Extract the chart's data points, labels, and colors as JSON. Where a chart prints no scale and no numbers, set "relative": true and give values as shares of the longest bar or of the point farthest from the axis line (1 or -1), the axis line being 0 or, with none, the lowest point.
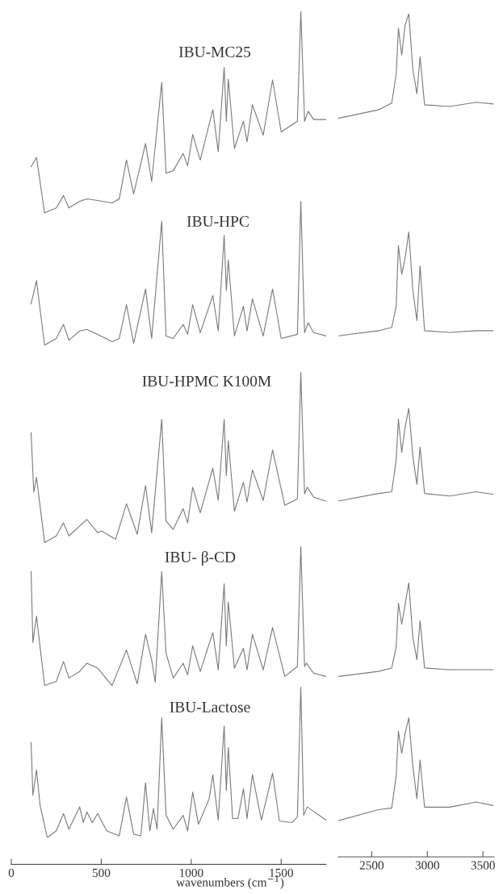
{
  "chart_data": [
    {
      "type": "line",
      "relative": true,
      "xlabel": "wavenumbers (cm$^{−1}$)",
      "xlim": [
        0,
        1750
      ],
      "xticks": [
        0,
        500,
        1000,
        1500
      ],
      "series": [
        {
          "name": "IBU-MC25",
          "color": "#7a7a7a",
          "x": [
            110,
            140,
            185,
            250,
            290,
            320,
            380,
            420,
            480,
            560,
            600,
            640,
            680,
            746,
            780,
            836,
            860,
            900,
            955,
            980,
            1008,
            1050,
            1120,
            1150,
            1183,
            1195,
            1206,
            1240,
            1290,
            1310,
            1340,
            1400,
            1452,
            1500,
            1590,
            1609,
            1630,
            1650,
            1680,
            1750
          ],
          "values": [
            0.812,
            0.823,
            0.756,
            0.762,
            0.777,
            0.762,
            0.77,
            0.773,
            0.771,
            0.768,
            0.773,
            0.82,
            0.779,
            0.84,
            0.794,
            0.914,
            0.804,
            0.807,
            0.828,
            0.813,
            0.851,
            0.82,
            0.881,
            0.83,
            0.932,
            0.867,
            0.918,
            0.834,
            0.867,
            0.842,
            0.887,
            0.85,
            0.917,
            0.854,
            0.867,
            1.0,
            0.867,
            0.879,
            0.869,
            0.869
          ]
        },
        {
          "name": "IBU-HPC",
          "color": "#7a7a7a",
          "x": [
            110,
            140,
            185,
            250,
            290,
            320,
            380,
            420,
            480,
            560,
            600,
            640,
            680,
            746,
            780,
            836,
            860,
            900,
            955,
            980,
            1008,
            1050,
            1120,
            1150,
            1183,
            1195,
            1206,
            1240,
            1290,
            1310,
            1340,
            1400,
            1452,
            1500,
            1590,
            1609,
            1630,
            1650,
            1680,
            1750
          ],
          "values": [
            0.646,
            0.674,
            0.596,
            0.604,
            0.621,
            0.602,
            0.613,
            0.615,
            0.609,
            0.6,
            0.604,
            0.645,
            0.598,
            0.664,
            0.604,
            0.746,
            0.607,
            0.604,
            0.621,
            0.609,
            0.645,
            0.611,
            0.656,
            0.613,
            0.729,
            0.662,
            0.699,
            0.607,
            0.643,
            0.613,
            0.652,
            0.607,
            0.664,
            0.604,
            0.609,
            0.77,
            0.611,
            0.623,
            0.611,
            0.607
          ]
        },
        {
          "name": "IBU-HPMC K100M",
          "color": "#7a7a7a",
          "x": [
            110,
            125,
            140,
            185,
            250,
            290,
            320,
            380,
            420,
            480,
            500,
            580,
            640,
            700,
            746,
            780,
            836,
            860,
            900,
            955,
            980,
            1008,
            1050,
            1120,
            1150,
            1183,
            1195,
            1206,
            1240,
            1290,
            1310,
            1340,
            1400,
            1452,
            1520,
            1590,
            1609,
            1630,
            1645,
            1680,
            1750
          ],
          "values": [
            0.49,
            0.418,
            0.436,
            0.357,
            0.365,
            0.381,
            0.365,
            0.377,
            0.385,
            0.369,
            0.371,
            0.361,
            0.404,
            0.367,
            0.426,
            0.369,
            0.506,
            0.383,
            0.373,
            0.398,
            0.381,
            0.424,
            0.393,
            0.447,
            0.408,
            0.506,
            0.438,
            0.48,
            0.395,
            0.43,
            0.406,
            0.445,
            0.408,
            0.469,
            0.402,
            0.41,
            0.563,
            0.416,
            0.424,
            0.412,
            0.407
          ]
        },
        {
          "name": "IBU- β-CD",
          "color": "#7a7a7a",
          "x": [
            110,
            120,
            140,
            185,
            250,
            290,
            320,
            380,
            420,
            480,
            560,
            640,
            700,
            746,
            780,
            800,
            836,
            860,
            900,
            955,
            980,
            1008,
            1050,
            1120,
            1150,
            1183,
            1195,
            1206,
            1240,
            1290,
            1310,
            1340,
            1400,
            1452,
            1520,
            1590,
            1609,
            1630,
            1640,
            1680,
            1750
          ],
          "values": [
            0.322,
            0.236,
            0.268,
            0.184,
            0.189,
            0.213,
            0.193,
            0.201,
            0.211,
            0.205,
            0.184,
            0.227,
            0.186,
            0.246,
            0.215,
            0.188,
            0.322,
            0.223,
            0.193,
            0.211,
            0.197,
            0.232,
            0.201,
            0.248,
            0.203,
            0.307,
            0.232,
            0.285,
            0.205,
            0.229,
            0.203,
            0.246,
            0.203,
            0.254,
            0.195,
            0.207,
            0.352,
            0.207,
            0.211,
            0.199,
            0.195
          ]
        },
        {
          "name": "IBU-Lactose",
          "color": "#7a7a7a",
          "x": [
            110,
            120,
            140,
            160,
            200,
            250,
            290,
            320,
            380,
            400,
            420,
            450,
            480,
            530,
            600,
            640,
            680,
            720,
            746,
            770,
            790,
            810,
            836,
            860,
            900,
            955,
            980,
            1008,
            1040,
            1100,
            1120,
            1150,
            1183,
            1195,
            1206,
            1230,
            1260,
            1290,
            1310,
            1340,
            1390,
            1452,
            1490,
            1560,
            1590,
            1609,
            1625,
            1645,
            1750
          ],
          "values": [
            0.115,
            0.051,
            0.082,
            0.039,
            0,
            0.008,
            0.029,
            0.01,
            0.037,
            0.018,
            0.031,
            0.018,
            0.029,
            0.008,
            0.002,
            0.049,
            0.004,
            0.002,
            0.066,
            0.008,
            0.035,
            0.01,
            0.145,
            0.027,
            0.01,
            0.027,
            0.008,
            0.055,
            0.016,
            0.047,
            0.076,
            0.021,
            0.135,
            0.057,
            0.109,
            0.023,
            0.023,
            0.059,
            0.023,
            0.076,
            0.021,
            0.078,
            0.02,
            0.018,
            0.025,
            0.182,
            0.027,
            0.037,
            0.021
          ]
        }
      ]
    },
    {
      "type": "line",
      "relative": true,
      "xlim": [
        2200,
        3600
      ],
      "xticks": [
        2500,
        3000,
        3500
      ],
      "series": [
        {
          "color": "#7a7a7a",
          "x": [
            2200,
            2560,
            2680,
            2720,
            2740,
            2770,
            2800,
            2833,
            2870,
            2906,
            2935,
            2975,
            3200,
            3440,
            3590
          ],
          "values": [
            0.876,
            0.886,
            0.894,
            0.928,
            0.983,
            0.951,
            0.986,
            1.0,
            0.934,
            0.905,
            0.949,
            0.892,
            0.89,
            0.895,
            0.893
          ]
        },
        {
          "color": "#7a7a7a",
          "x": [
            2200,
            2560,
            2680,
            2720,
            2740,
            2770,
            2800,
            2833,
            2870,
            2906,
            2935,
            2975,
            3200,
            3440,
            3590
          ],
          "values": [
            0.618,
            0.624,
            0.628,
            0.653,
            0.725,
            0.691,
            0.71,
            0.741,
            0.672,
            0.636,
            0.701,
            0.624,
            0.622,
            0.624,
            0.624
          ]
        },
        {
          "color": "#7a7a7a",
          "x": [
            2200,
            2560,
            2680,
            2720,
            2740,
            2770,
            2800,
            2833,
            2870,
            2906,
            2935,
            2975,
            3200,
            3440,
            3590
          ],
          "values": [
            0.422,
            0.431,
            0.433,
            0.471,
            0.519,
            0.48,
            0.509,
            0.532,
            0.475,
            0.442,
            0.486,
            0.431,
            0.428,
            0.433,
            0.43
          ]
        },
        {
          "color": "#7a7a7a",
          "x": [
            2200,
            2560,
            2680,
            2720,
            2740,
            2770,
            2800,
            2833,
            2870,
            2906,
            2935,
            2975,
            3200,
            3440,
            3590
          ],
          "values": [
            0.214,
            0.22,
            0.224,
            0.249,
            0.301,
            0.276,
            0.299,
            0.325,
            0.26,
            0.234,
            0.28,
            0.224,
            0.222,
            0.222,
            0.222
          ]
        },
        {
          "color": "#7a7a7a",
          "x": [
            2200,
            2560,
            2680,
            2720,
            2740,
            2770,
            2800,
            2833,
            2870,
            2906,
            2935,
            2975,
            3200,
            3440,
            3590
          ],
          "values": [
            0.043,
            0.056,
            0.058,
            0.096,
            0.149,
            0.123,
            0.146,
            0.165,
            0.107,
            0.069,
            0.115,
            0.059,
            0.059,
            0.065,
            0.061
          ]
        }
      ]
    }
  ]
}
